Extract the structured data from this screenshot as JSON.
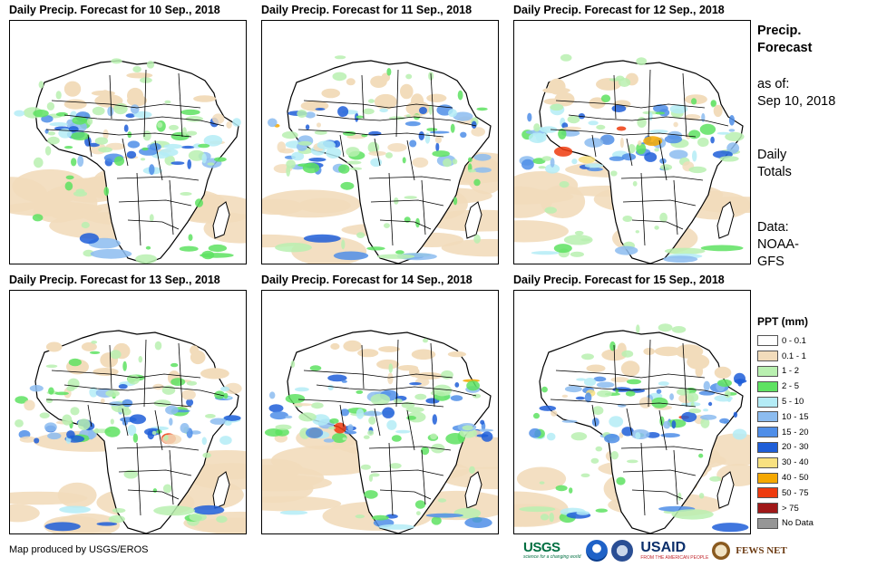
{
  "panels": [
    {
      "title": "Daily Precip. Forecast for 10 Sep., 2018"
    },
    {
      "title": "Daily Precip. Forecast for 11 Sep., 2018"
    },
    {
      "title": "Daily Precip. Forecast for 12 Sep., 2018"
    },
    {
      "title": "Daily Precip. Forecast for 13 Sep., 2018"
    },
    {
      "title": "Daily Precip. Forecast for 14 Sep., 2018"
    },
    {
      "title": "Daily Precip. Forecast for 15 Sep., 2018"
    }
  ],
  "side_info": {
    "title_line1": "Precip.",
    "title_line2": "Forecast",
    "asof_label": "as of:",
    "asof_date": "Sep 10, 2018",
    "totals_line1": "Daily",
    "totals_line2": "Totals",
    "data_line1": "Data:",
    "data_line2": "NOAA-",
    "data_line3": "GFS"
  },
  "legend": {
    "title": "PPT (mm)",
    "items": [
      {
        "label": "0 - 0.1",
        "color": "#ffffff"
      },
      {
        "label": "0.1 - 1",
        "color": "#f2dcbb"
      },
      {
        "label": "1 - 2",
        "color": "#b9f0b0"
      },
      {
        "label": "2 - 5",
        "color": "#5ee262"
      },
      {
        "label": "5 - 10",
        "color": "#b4ecf6"
      },
      {
        "label": "10 - 15",
        "color": "#8cbcf0"
      },
      {
        "label": "15 - 20",
        "color": "#4f8ee8"
      },
      {
        "label": "20 - 30",
        "color": "#1e5ed8"
      },
      {
        "label": "30 - 40",
        "color": "#f8e180"
      },
      {
        "label": "40 - 50",
        "color": "#f5a800"
      },
      {
        "label": "50 - 75",
        "color": "#ee3b0e"
      },
      {
        "label": "> 75",
        "color": "#a01818"
      },
      {
        "label": "No Data",
        "color": "#969696"
      }
    ]
  },
  "credit": "Map produced by USGS/EROS",
  "logos": {
    "usgs": "USGS",
    "usgs_tagline": "science for a changing world",
    "usaid": "USAID",
    "usaid_tagline": "FROM THE AMERICAN PEOPLE",
    "fews": "FEWS NET",
    "noaa_icon": "noaa-logo-icon",
    "dod_icon": "seal-icon"
  }
}
